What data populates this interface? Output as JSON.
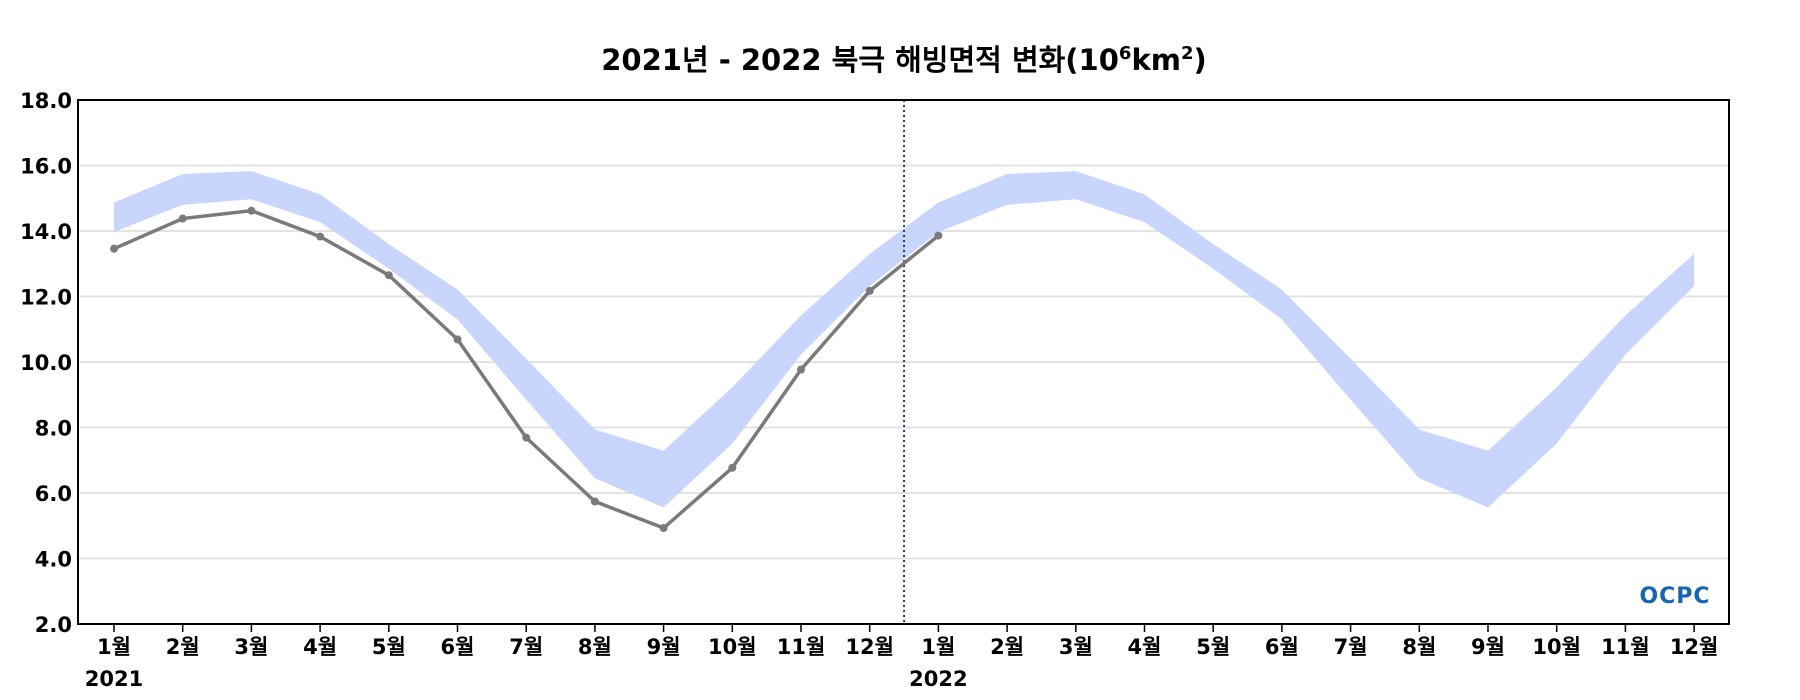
{
  "chart_data": {
    "type": "line",
    "title": "2021년 - 2022 북극 해빙면적 변화(10⁶km²)",
    "title_parts": {
      "main": "2021년 - 2022 북극 해빙면적 변화(10",
      "sup1": "6",
      "mid": "km",
      "sup2": "2",
      "end": ")"
    },
    "xlabel": "",
    "ylabel": "",
    "ylim": [
      2.0,
      18.0
    ],
    "y_ticks": [
      "2.0",
      "4.0",
      "6.0",
      "8.0",
      "10.0",
      "12.0",
      "14.0",
      "16.0",
      "18.0"
    ],
    "grid": true,
    "categories": [
      "1월",
      "2월",
      "3월",
      "4월",
      "5월",
      "6월",
      "7월",
      "8월",
      "9월",
      "10월",
      "11월",
      "12월",
      "1월",
      "2월",
      "3월",
      "4월",
      "5월",
      "6월",
      "7월",
      "8월",
      "9월",
      "10월",
      "11월",
      "12월"
    ],
    "year_labels": [
      {
        "label": "2021",
        "at_index": 0
      },
      {
        "label": "2022",
        "at_index": 12
      }
    ],
    "year_divider_between": [
      "12월 2021",
      "1월 2022"
    ],
    "series": [
      {
        "kind": "range-band",
        "color": "#c8d5fd",
        "upper": [
          14.87,
          15.74,
          15.83,
          15.12,
          13.6,
          12.21,
          10.1,
          7.94,
          7.29,
          9.23,
          11.42,
          13.3,
          14.87,
          15.74,
          15.83,
          15.12,
          13.6,
          12.21,
          10.1,
          7.94,
          7.29,
          9.23,
          11.42,
          13.3
        ],
        "lower": [
          13.97,
          14.8,
          14.97,
          14.27,
          12.85,
          11.3,
          8.85,
          6.45,
          5.56,
          7.51,
          10.23,
          12.32,
          13.97,
          14.8,
          14.97,
          14.27,
          12.85,
          11.3,
          8.85,
          6.45,
          5.56,
          7.51,
          10.23,
          12.32
        ]
      },
      {
        "kind": "line",
        "color": "#7a7a7a",
        "values": [
          13.46,
          14.38,
          14.62,
          13.83,
          12.65,
          10.69,
          7.69,
          5.74,
          4.93,
          6.77,
          9.77,
          12.17,
          13.86,
          null,
          null,
          null,
          null,
          null,
          null,
          null,
          null,
          null,
          null,
          null
        ]
      }
    ],
    "divider_color": "#1f3a6b",
    "logo": "OCPC"
  }
}
